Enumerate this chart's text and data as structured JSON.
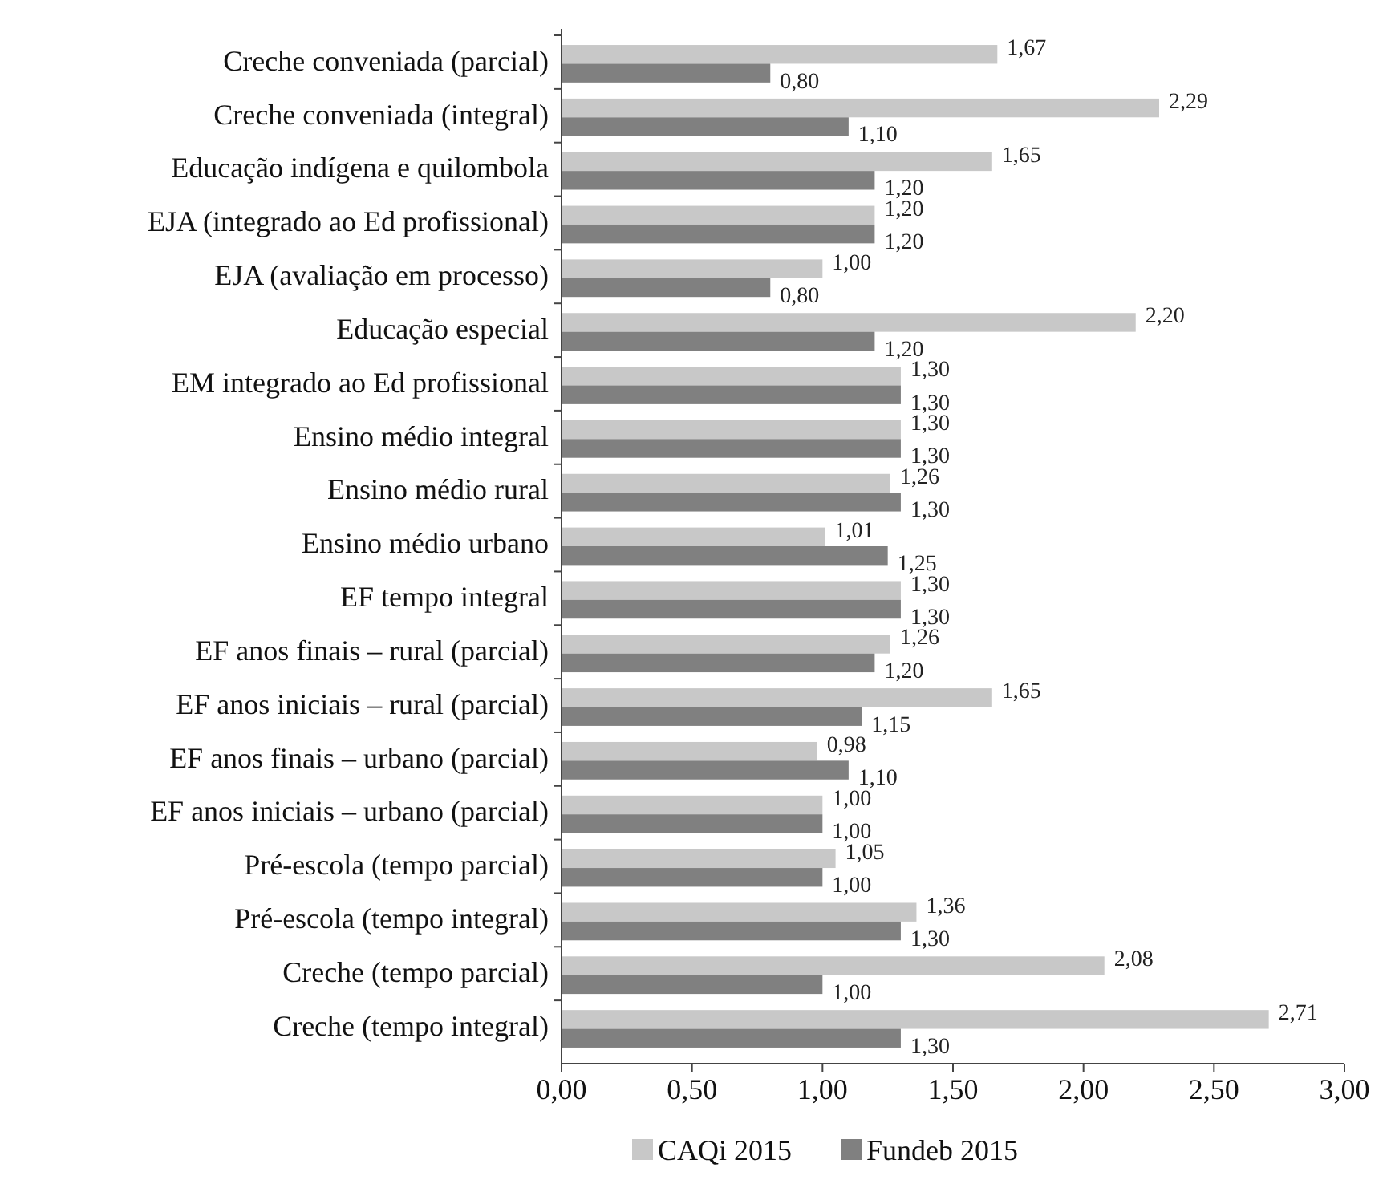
{
  "chart_data": {
    "type": "bar",
    "orientation": "horizontal",
    "categories": [
      "Creche conveniada (parcial)",
      "Creche conveniada (integral)",
      "Educação indígena e quilombola",
      "EJA (integrado ao Ed profissional)",
      "EJA (avaliação em processo)",
      "Educação especial",
      "EM integrado ao Ed profissional",
      "Ensino médio integral",
      "Ensino médio rural",
      "Ensino médio urbano",
      "EF tempo integral",
      "EF anos finais – rural (parcial)",
      "EF anos iniciais – rural (parcial)",
      "EF anos finais – urbano (parcial)",
      "EF anos iniciais – urbano (parcial)",
      "Pré-escola (tempo parcial)",
      "Pré-escola (tempo integral)",
      "Creche (tempo parcial)",
      "Creche (tempo integral)"
    ],
    "series": [
      {
        "name": "CAQi 2015",
        "color": "#c8c8c8",
        "values": [
          1.67,
          2.29,
          1.65,
          1.2,
          1.0,
          2.2,
          1.3,
          1.3,
          1.26,
          1.01,
          1.3,
          1.26,
          1.65,
          0.98,
          1.0,
          1.05,
          1.36,
          2.08,
          2.71
        ],
        "value_labels": [
          "1,67",
          "2,29",
          "1,65",
          "1,20",
          "1,00",
          "2,20",
          "1,30",
          "1,30",
          "1,26",
          "1,01",
          "1,30",
          "1,26",
          "1,65",
          "0,98",
          "1,00",
          "1,05",
          "1,36",
          "2,08",
          "2,71"
        ]
      },
      {
        "name": "Fundeb 2015",
        "color": "#808080",
        "values": [
          0.8,
          1.1,
          1.2,
          1.2,
          0.8,
          1.2,
          1.3,
          1.3,
          1.3,
          1.25,
          1.3,
          1.2,
          1.15,
          1.1,
          1.0,
          1.0,
          1.3,
          1.0,
          1.3
        ],
        "value_labels": [
          "0,80",
          "1,10",
          "1,20",
          "1,20",
          "0,80",
          "1,20",
          "1,30",
          "1,30",
          "1,30",
          "1,25",
          "1,30",
          "1,20",
          "1,15",
          "1,10",
          "1,00",
          "1,00",
          "1,30",
          "1,00",
          "1,30"
        ]
      }
    ],
    "xlim": [
      0,
      3
    ],
    "xticks": [
      {
        "value": 0,
        "label": "0,00"
      },
      {
        "value": 0.5,
        "label": "0,50"
      },
      {
        "value": 1,
        "label": "1,00"
      },
      {
        "value": 1.5,
        "label": "1,50"
      },
      {
        "value": 2,
        "label": "2,00"
      },
      {
        "value": 2.5,
        "label": "2,50"
      },
      {
        "value": 3,
        "label": "3,00"
      }
    ],
    "legend": "bottom"
  }
}
